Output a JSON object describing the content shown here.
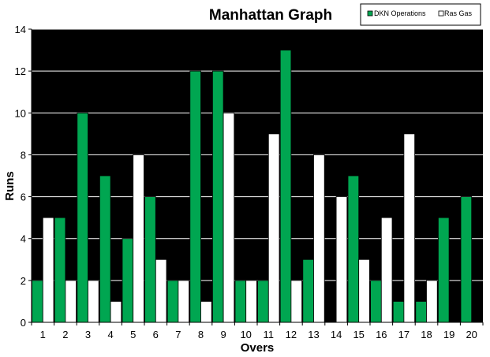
{
  "chart_data": {
    "type": "bar",
    "title": "Manhattan Graph",
    "xlabel": "Overs",
    "ylabel": "Runs",
    "ylim": [
      0,
      14
    ],
    "yticks": [
      0,
      2,
      4,
      6,
      8,
      10,
      12,
      14
    ],
    "grid": true,
    "legend_position": "top-right",
    "categories": [
      "1",
      "2",
      "3",
      "4",
      "5",
      "6",
      "7",
      "8",
      "9",
      "10",
      "11",
      "12",
      "13",
      "14",
      "15",
      "16",
      "17",
      "18",
      "19",
      "20"
    ],
    "series": [
      {
        "name": "DKN Operations",
        "color": "#00a651",
        "values": [
          2,
          5,
          10,
          7,
          4,
          6,
          2,
          12,
          12,
          2,
          2,
          13,
          3,
          0,
          7,
          2,
          1,
          1,
          5,
          6
        ]
      },
      {
        "name": "Ras Gas",
        "color": "#ffffff",
        "values": [
          5,
          2,
          2,
          1,
          8,
          3,
          2,
          1,
          10,
          2,
          9,
          2,
          8,
          6,
          3,
          5,
          9,
          2,
          null,
          null
        ]
      }
    ],
    "plot_background": "#000000",
    "grid_color": "#ffffff"
  }
}
